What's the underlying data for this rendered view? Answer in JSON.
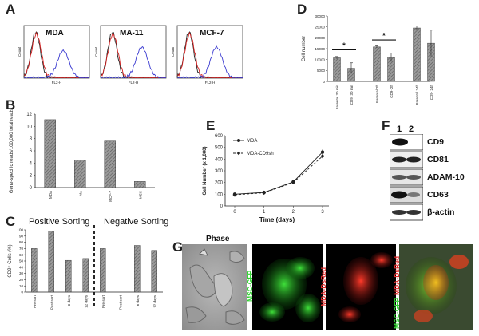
{
  "panels": {
    "A": {
      "letter": "A",
      "histograms": [
        {
          "label": "MDA",
          "ylabel": "Count",
          "xlabel": "FL2-H"
        },
        {
          "label": "MA-11",
          "ylabel": "Count",
          "xlabel": "FL2-H"
        },
        {
          "label": "MCF-7",
          "ylabel": "Count",
          "xlabel": "FL2-H"
        }
      ],
      "colors": {
        "red": "#d42020",
        "blue": "#3a3ad0",
        "black": "#222222"
      }
    },
    "B": {
      "letter": "B"
    },
    "C": {
      "letter": "C",
      "positive_label": "Positive Sorting",
      "negative_label": "Negative Sorting"
    },
    "D": {
      "letter": "D"
    },
    "E": {
      "letter": "E"
    },
    "F": {
      "letter": "F",
      "lanes": [
        "1",
        "2"
      ],
      "proteins": [
        "CD9",
        "CD81",
        "ADAM-10",
        "CD63",
        "β-actin"
      ]
    },
    "G": {
      "letter": "G",
      "phase_label": "Phase",
      "msc_label": "MSC-GFP",
      "mda_label": "MDA-DsRed",
      "merge_label_green": "MSC-GFP",
      "merge_label_red": "MDA-DsRed"
    }
  },
  "chart_data": [
    {
      "id": "B",
      "type": "bar",
      "ylabel": "Gene-specific reads/100,000 total reads",
      "categories": [
        "MDA",
        "MA",
        "MCF-7",
        "MSC"
      ],
      "values": [
        11.1,
        4.5,
        7.6,
        1.0
      ],
      "ylim": [
        0,
        12
      ],
      "yticks": [
        0,
        2,
        4,
        6,
        8,
        10,
        12
      ]
    },
    {
      "id": "C",
      "type": "bar",
      "ylabel": "CD9⁺ Cells (%)",
      "categories": [
        "Pre-sort",
        "Post-sort",
        "6 days",
        "12 days",
        "Pre-sort",
        "Post-sort",
        "6 days",
        "12 days"
      ],
      "values": [
        70,
        98,
        51,
        54,
        70,
        0,
        75,
        67
      ],
      "ylim": [
        0,
        100
      ],
      "yticks": [
        0,
        10,
        20,
        30,
        40,
        50,
        60,
        70,
        80,
        90,
        100
      ]
    },
    {
      "id": "D",
      "type": "bar",
      "ylabel": "Cell number",
      "categories": [
        "Parental 30 min",
        "CD9- 30 min",
        "Parental 2h",
        "CD9- 2h",
        "Parental 24h",
        "CD9- 24h"
      ],
      "values": [
        10800,
        6000,
        15800,
        11000,
        24500,
        17500
      ],
      "errors": [
        600,
        2500,
        500,
        2000,
        1000,
        6000
      ],
      "ylim": [
        0,
        30000
      ],
      "yticks": [
        0,
        5000,
        10000,
        15000,
        20000,
        25000,
        30000
      ],
      "ytick_labels": [
        "0",
        "5000",
        "10000",
        "15000",
        "20000",
        "25000",
        "30000"
      ],
      "annotations": [
        "*",
        "*"
      ]
    },
    {
      "id": "E",
      "type": "line",
      "xlabel": "Time (days)",
      "ylabel": "Cell Number (x 1,000)",
      "x": [
        0,
        1,
        2,
        3
      ],
      "xticks": [
        "0",
        "1",
        "2",
        "3"
      ],
      "ylim": [
        0,
        600
      ],
      "yticks": [
        0,
        100,
        200,
        300,
        400,
        500,
        600
      ],
      "series": [
        {
          "name": "MDA",
          "values": [
            100,
            115,
            205,
            460
          ],
          "errors": [
            5,
            6,
            8,
            22
          ]
        },
        {
          "name": "MDA-CD9sh",
          "values": [
            95,
            112,
            200,
            425
          ],
          "errors": [
            5,
            6,
            8,
            18
          ]
        }
      ],
      "legend": "top-left"
    }
  ]
}
